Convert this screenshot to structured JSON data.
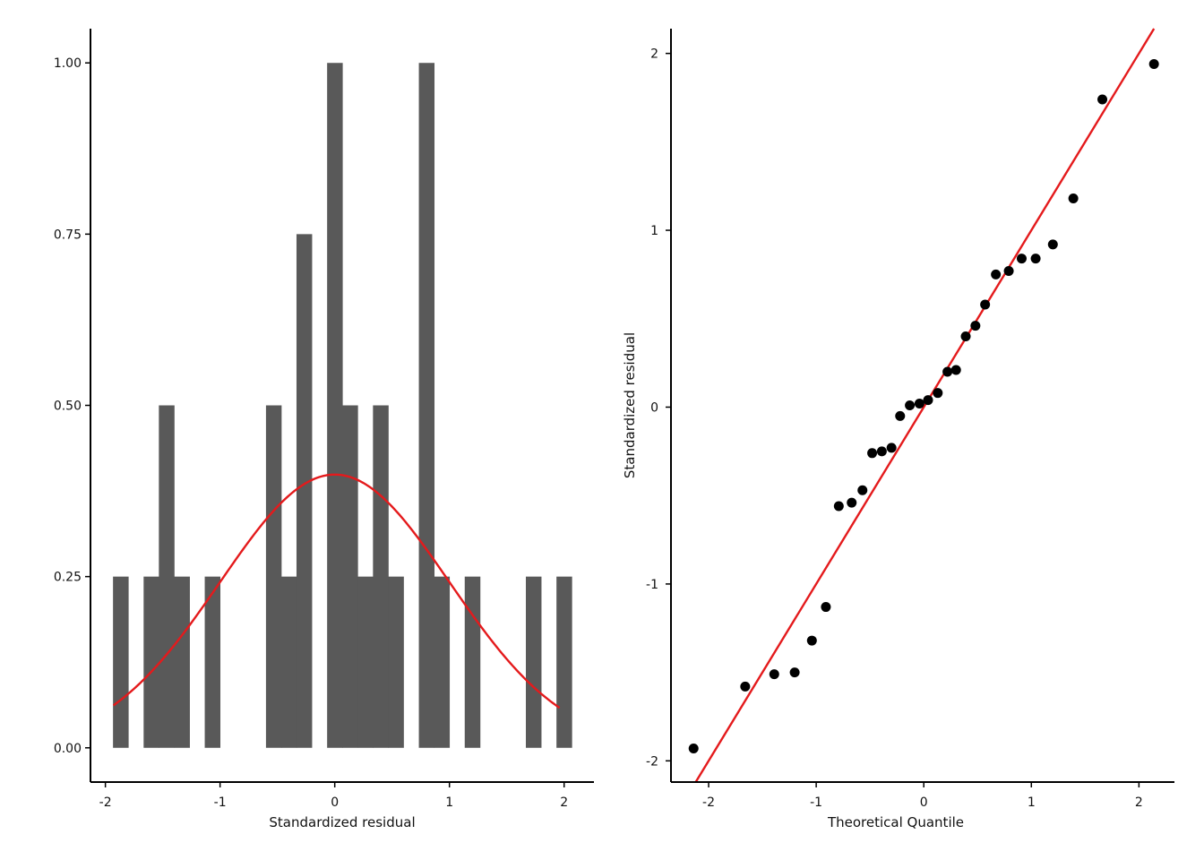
{
  "colors": {
    "bar_fill": "#595959",
    "curve": "#e41a1c",
    "point": "#000000",
    "axis": "#000000",
    "line": "#e41a1c"
  },
  "chart_data": [
    {
      "type": "bar",
      "subtype": "histogram",
      "title": "",
      "xlabel": "Standardized residual",
      "ylabel": "",
      "xlim": [
        -2.13,
        2.26
      ],
      "ylim": [
        -0.05,
        1.05
      ],
      "x_ticks": [
        -2,
        -1,
        0,
        1,
        2
      ],
      "x_tick_labels": [
        "-2",
        "-1",
        "0",
        "1",
        "2"
      ],
      "y_ticks": [
        0,
        0.25,
        0.5,
        0.75,
        1
      ],
      "y_tick_labels": [
        "0.00",
        "0.25",
        "0.50",
        "0.75",
        "1.00"
      ],
      "bin_width": 0.1333,
      "bins": [
        {
          "center": -1.867,
          "value": 0.25
        },
        {
          "center": -1.6,
          "value": 0.25
        },
        {
          "center": -1.467,
          "value": 0.5
        },
        {
          "center": -1.333,
          "value": 0.25
        },
        {
          "center": -1.067,
          "value": 0.25
        },
        {
          "center": -0.533,
          "value": 0.5
        },
        {
          "center": -0.4,
          "value": 0.25
        },
        {
          "center": -0.267,
          "value": 0.75
        },
        {
          "center": 0.0,
          "value": 1.0
        },
        {
          "center": 0.133,
          "value": 0.5
        },
        {
          "center": 0.267,
          "value": 0.25
        },
        {
          "center": 0.4,
          "value": 0.5
        },
        {
          "center": 0.533,
          "value": 0.25
        },
        {
          "center": 0.8,
          "value": 1.0
        },
        {
          "center": 0.933,
          "value": 0.25
        },
        {
          "center": 1.2,
          "value": 0.25
        },
        {
          "center": 1.733,
          "value": 0.25
        },
        {
          "center": 2.0,
          "value": 0.25
        }
      ],
      "overlay": {
        "type": "line",
        "function": "normal_density",
        "mean": 0,
        "sd": 1,
        "x_range": [
          -1.93,
          1.96
        ]
      },
      "grid": false,
      "legend": "none"
    },
    {
      "type": "scatter",
      "subtype": "qq-plot",
      "title": "",
      "xlabel": "Theoretical Quantile",
      "ylabel": "Standardized residual",
      "xlim": [
        -2.35,
        2.33
      ],
      "ylim": [
        -2.12,
        2.14
      ],
      "x_ticks": [
        -2,
        -1,
        0,
        1,
        2
      ],
      "x_tick_labels": [
        "-2",
        "-1",
        "0",
        "1",
        "2"
      ],
      "y_ticks": [
        -2,
        -1,
        0,
        1,
        2
      ],
      "y_tick_labels": [
        "-2",
        "-1",
        "0",
        "1",
        "2"
      ],
      "points": [
        {
          "x": -2.14,
          "y": -1.93
        },
        {
          "x": -1.66,
          "y": -1.58
        },
        {
          "x": -1.39,
          "y": -1.51
        },
        {
          "x": -1.2,
          "y": -1.5
        },
        {
          "x": -1.04,
          "y": -1.32
        },
        {
          "x": -0.91,
          "y": -1.13
        },
        {
          "x": -0.79,
          "y": -0.56
        },
        {
          "x": -0.67,
          "y": -0.54
        },
        {
          "x": -0.57,
          "y": -0.47
        },
        {
          "x": -0.48,
          "y": -0.26
        },
        {
          "x": -0.39,
          "y": -0.25
        },
        {
          "x": -0.3,
          "y": -0.23
        },
        {
          "x": -0.22,
          "y": -0.05
        },
        {
          "x": -0.13,
          "y": 0.01
        },
        {
          "x": -0.04,
          "y": 0.02
        },
        {
          "x": 0.04,
          "y": 0.04
        },
        {
          "x": 0.13,
          "y": 0.08
        },
        {
          "x": 0.22,
          "y": 0.2
        },
        {
          "x": 0.3,
          "y": 0.21
        },
        {
          "x": 0.39,
          "y": 0.4
        },
        {
          "x": 0.48,
          "y": 0.46
        },
        {
          "x": 0.57,
          "y": 0.58
        },
        {
          "x": 0.67,
          "y": 0.75
        },
        {
          "x": 0.79,
          "y": 0.77
        },
        {
          "x": 0.91,
          "y": 0.84
        },
        {
          "x": 1.04,
          "y": 0.84
        },
        {
          "x": 1.2,
          "y": 0.92
        },
        {
          "x": 1.39,
          "y": 1.18
        },
        {
          "x": 1.66,
          "y": 1.74
        },
        {
          "x": 2.14,
          "y": 1.94
        }
      ],
      "reference_line": {
        "intercept": 0,
        "slope": 1
      },
      "grid": false,
      "legend": "none"
    }
  ]
}
